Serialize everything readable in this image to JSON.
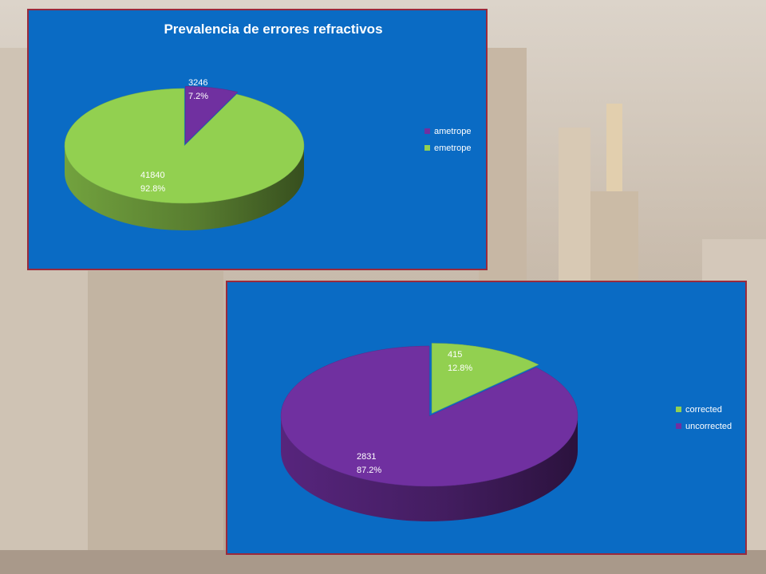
{
  "chart_data": [
    {
      "type": "pie",
      "title": "Prevalencia de errores refractivos",
      "categories": [
        "ametrope",
        "emetrope"
      ],
      "values": [
        3246,
        41840
      ],
      "percent_labels": [
        "7.2%",
        "92.8%"
      ],
      "colors": [
        "#7030a0",
        "#92d050"
      ],
      "legend_position": "right",
      "style": "3d"
    },
    {
      "type": "pie",
      "title": "",
      "categories": [
        "corrected",
        "uncorrected"
      ],
      "values": [
        415,
        2831
      ],
      "percent_labels": [
        "12.8%",
        "87.2%"
      ],
      "colors": [
        "#92d050",
        "#7030a0"
      ],
      "legend_position": "right",
      "style": "3d"
    }
  ]
}
